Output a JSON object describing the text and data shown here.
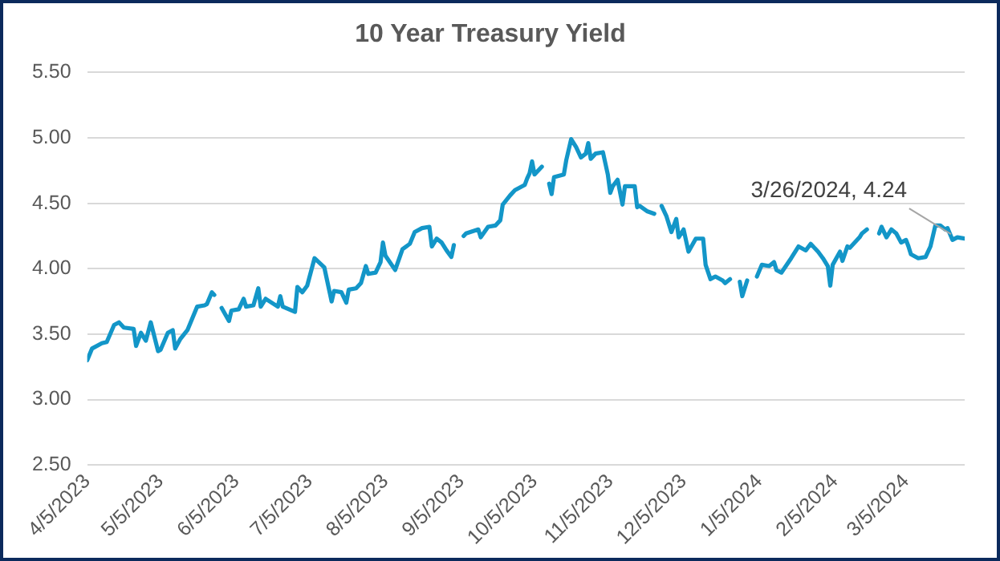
{
  "chart_data": {
    "type": "line",
    "title": "10 Year Treasury Yield",
    "x": [
      "2023-04-05",
      "2023-04-07",
      "2023-04-11",
      "2023-04-13",
      "2023-04-16",
      "2023-04-18",
      "2023-04-20",
      "2023-04-24",
      "2023-04-25",
      "2023-04-27",
      "2023-04-29",
      "2023-05-01",
      "2023-05-04",
      "2023-05-05",
      "2023-05-08",
      "2023-05-10",
      "2023-05-11",
      "2023-05-13",
      "2023-05-16",
      "2023-05-20",
      "2023-05-23",
      "2023-05-24",
      "2023-05-26",
      "2023-05-27",
      "2023-05-29",
      "2023-05-30",
      "2023-06-02",
      "2023-06-03",
      "2023-06-06",
      "2023-06-08",
      "2023-06-09",
      "2023-06-12",
      "2023-06-14",
      "2023-06-15",
      "2023-06-17",
      "2023-06-22",
      "2023-06-23",
      "2023-06-24",
      "2023-06-29",
      "2023-06-30",
      "2023-07-02",
      "2023-07-04",
      "2023-07-07",
      "2023-07-11",
      "2023-07-14",
      "2023-07-15",
      "2023-07-18",
      "2023-07-20",
      "2023-07-21",
      "2023-07-24",
      "2023-07-26",
      "2023-07-28",
      "2023-07-29",
      "2023-08-01",
      "2023-08-03",
      "2023-08-04",
      "2023-08-05",
      "2023-08-09",
      "2023-08-12",
      "2023-08-15",
      "2023-08-17",
      "2023-08-20",
      "2023-08-23",
      "2023-08-24",
      "2023-08-26",
      "2023-08-28",
      "2023-08-30",
      "2023-09-01",
      "2023-09-02",
      "2023-09-04",
      "2023-09-06",
      "2023-09-07",
      "2023-09-12",
      "2023-09-13",
      "2023-09-16",
      "2023-09-19",
      "2023-09-21",
      "2023-09-22",
      "2023-09-25",
      "2023-09-27",
      "2023-10-01",
      "2023-10-02",
      "2023-10-03",
      "2023-10-04",
      "2023-10-05",
      "2023-10-08",
      "2023-10-09",
      "2023-10-11",
      "2023-10-12",
      "2023-10-13",
      "2023-10-17",
      "2023-10-18",
      "2023-10-20",
      "2023-10-22",
      "2023-10-24",
      "2023-10-26",
      "2023-10-27",
      "2023-10-28",
      "2023-10-30",
      "2023-11-02",
      "2023-11-04",
      "2023-11-05",
      "2023-11-06",
      "2023-11-08",
      "2023-11-10",
      "2023-11-11",
      "2023-11-15",
      "2023-11-16",
      "2023-11-17",
      "2023-11-20",
      "2023-11-23",
      "2023-11-25",
      "2023-11-26",
      "2023-11-28",
      "2023-11-30",
      "2023-12-02",
      "2023-12-03",
      "2023-12-05",
      "2023-12-07",
      "2023-12-10",
      "2023-12-13",
      "2023-12-14",
      "2023-12-16",
      "2023-12-18",
      "2023-12-21",
      "2023-12-22",
      "2023-12-24",
      "2023-12-25",
      "2023-12-28",
      "2023-12-29",
      "2023-12-31",
      "2024-01-01",
      "2024-01-04",
      "2024-01-06",
      "2024-01-09",
      "2024-01-11",
      "2024-01-12",
      "2024-01-14",
      "2024-01-18",
      "2024-01-21",
      "2024-01-24",
      "2024-01-26",
      "2024-01-29",
      "2024-01-31",
      "2024-02-02",
      "2024-02-03",
      "2024-02-04",
      "2024-02-07",
      "2024-02-08",
      "2024-02-10",
      "2024-02-11",
      "2024-02-15",
      "2024-02-16",
      "2024-02-18",
      "2024-02-19",
      "2024-02-23",
      "2024-02-24",
      "2024-02-26",
      "2024-02-28",
      "2024-03-01",
      "2024-03-03",
      "2024-03-05",
      "2024-03-06",
      "2024-03-07",
      "2024-03-10",
      "2024-03-13",
      "2024-03-15",
      "2024-03-17",
      "2024-03-19",
      "2024-03-21",
      "2024-03-22",
      "2024-03-24",
      "2024-03-26",
      "2024-03-29"
    ],
    "series": [
      {
        "color": "#1396c8",
        "values": [
          3.3,
          3.39,
          3.43,
          3.44,
          3.57,
          3.59,
          3.55,
          3.54,
          3.41,
          3.51,
          3.45,
          3.59,
          3.37,
          3.38,
          3.51,
          3.53,
          3.39,
          3.46,
          3.53,
          3.71,
          3.72,
          3.73,
          3.82,
          3.8,
          null,
          3.7,
          3.6,
          3.68,
          3.69,
          3.77,
          3.71,
          3.72,
          3.85,
          3.71,
          3.77,
          3.71,
          3.79,
          3.71,
          3.67,
          3.86,
          3.82,
          3.87,
          4.08,
          4.01,
          3.75,
          3.83,
          3.82,
          3.74,
          3.84,
          3.85,
          3.89,
          4.02,
          3.96,
          3.97,
          4.05,
          4.2,
          4.1,
          3.99,
          4.15,
          4.19,
          4.28,
          4.31,
          4.32,
          4.17,
          4.23,
          4.2,
          4.14,
          4.09,
          4.18,
          null,
          4.25,
          4.27,
          4.3,
          4.24,
          4.32,
          4.33,
          4.37,
          4.49,
          4.56,
          4.6,
          4.64,
          4.69,
          4.73,
          4.82,
          4.72,
          4.78,
          null,
          4.65,
          4.57,
          4.7,
          4.72,
          4.83,
          4.99,
          4.93,
          4.85,
          4.88,
          4.96,
          4.84,
          4.88,
          4.89,
          4.72,
          4.58,
          4.63,
          4.68,
          4.49,
          4.63,
          4.63,
          4.47,
          4.48,
          4.44,
          4.42,
          null,
          4.48,
          4.4,
          4.28,
          4.38,
          4.24,
          4.3,
          4.13,
          4.23,
          4.23,
          4.03,
          3.92,
          3.94,
          3.91,
          3.89,
          3.92,
          null,
          3.9,
          3.79,
          3.91,
          null,
          3.94,
          4.03,
          4.02,
          4.05,
          3.99,
          3.97,
          4.08,
          4.17,
          4.14,
          4.19,
          4.13,
          4.08,
          4.02,
          3.87,
          4.03,
          4.13,
          4.06,
          4.17,
          4.16,
          4.24,
          4.27,
          4.3,
          null,
          4.27,
          4.32,
          4.24,
          4.3,
          4.27,
          4.2,
          4.22,
          4.17,
          4.11,
          4.08,
          4.09,
          4.17,
          4.33,
          4.33,
          4.3,
          4.31,
          4.22,
          4.24,
          4.23
        ]
      }
    ],
    "xlim": [
      "2023-04-05",
      "2024-03-29"
    ],
    "xticks": [
      {
        "value": "2023-04-05",
        "label": "4/5/2023"
      },
      {
        "value": "2023-05-05",
        "label": "5/5/2023"
      },
      {
        "value": "2023-06-05",
        "label": "6/5/2023"
      },
      {
        "value": "2023-07-05",
        "label": "7/5/2023"
      },
      {
        "value": "2023-08-05",
        "label": "8/5/2023"
      },
      {
        "value": "2023-09-05",
        "label": "9/5/2023"
      },
      {
        "value": "2023-10-05",
        "label": "10/5/2023"
      },
      {
        "value": "2023-11-05",
        "label": "11/5/2023"
      },
      {
        "value": "2023-12-05",
        "label": "12/5/2023"
      },
      {
        "value": "2024-01-05",
        "label": "1/5/2024"
      },
      {
        "value": "2024-02-05",
        "label": "2/5/2024"
      },
      {
        "value": "2024-03-05",
        "label": "3/5/2024"
      }
    ],
    "ylim": [
      2.5,
      5.5
    ],
    "yticks": [
      {
        "value": 2.5,
        "label": "2.50"
      },
      {
        "value": 3.0,
        "label": "3.00"
      },
      {
        "value": 3.5,
        "label": "3.50"
      },
      {
        "value": 4.0,
        "label": "4.00"
      },
      {
        "value": 4.5,
        "label": "4.50"
      },
      {
        "value": 5.0,
        "label": "5.00"
      },
      {
        "value": 5.5,
        "label": "5.50"
      }
    ],
    "grid": "y",
    "legend": false,
    "marker": "none",
    "line_style": "solid",
    "annotations": [
      {
        "text": "3/26/2024, 4.24",
        "x": "2024-03-26",
        "y": 4.24
      }
    ]
  }
}
